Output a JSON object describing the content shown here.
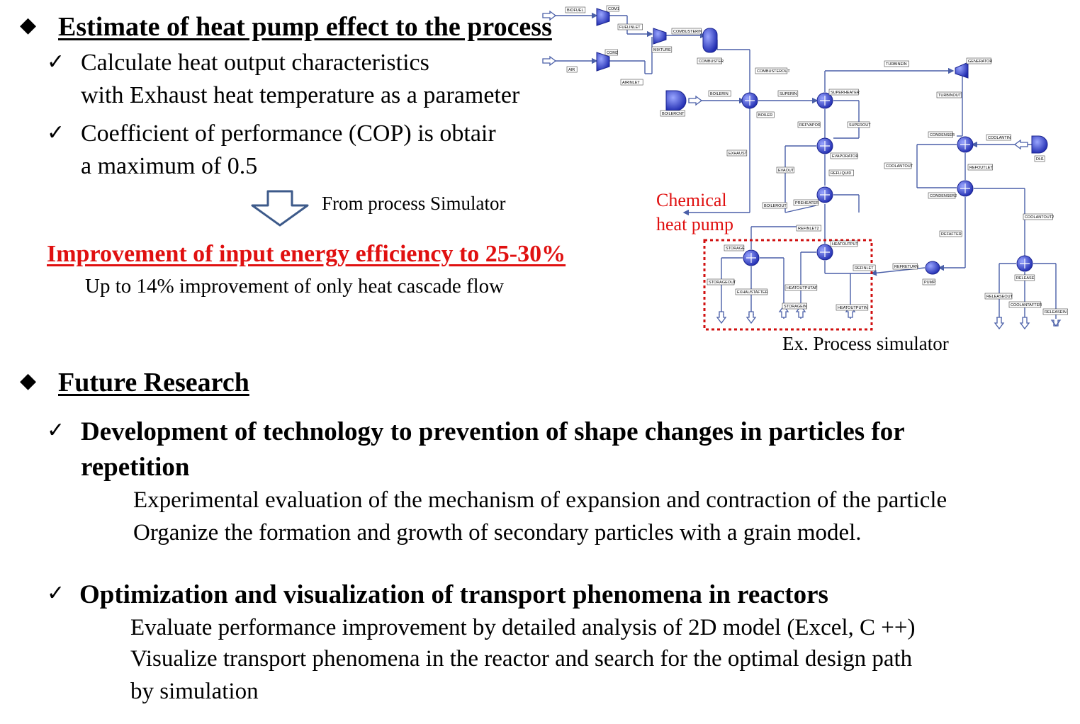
{
  "section1": {
    "heading": "Estimate of heat pump effect to the process",
    "bullets": [
      {
        "line1": "Calculate heat output characteristics",
        "line2": "with Exhaust heat temperature as a parameter"
      },
      {
        "line1": "Coefficient of performance (COP) is obtair",
        "line2": "a maximum of 0.5"
      }
    ],
    "arrow_label": "From process Simulator",
    "result": "Improvement of input energy efficiency to 25-30%",
    "result_note": "Up to 14% improvement of only heat cascade flow"
  },
  "figure": {
    "highlight_label_1": "Chemical",
    "highlight_label_2": "heat pump",
    "caption": "Ex. Process simulator",
    "colors": {
      "unit": "#2a36c8",
      "line": "#4a5fa8",
      "highlight": "#d01010"
    },
    "tags": {
      "biofuel": "BIOFUEL",
      "com1": "COM1",
      "fuelinlet": "FUELINLET",
      "com2": "COM2",
      "air": "AIR",
      "airinlet": "AIRINLET",
      "mixture": "MIXTURE",
      "combusterin": "COMBUSTERIN",
      "combuster": "COMBUSTER",
      "combusterout": "COMBUSTEROUT",
      "boilerin": "BOILERIN",
      "boiler": "BOILER",
      "boilercnt": "BOILERCNT",
      "superin": "SUPERIN",
      "superheater": "SUPERHEATER",
      "refvapor": "REFVAPOR",
      "superout": "SUPEROUT",
      "evaporator": "EVAPORATOR",
      "evaout": "EVAOUT",
      "refliquid": "REFLIQUID",
      "exhaust": "EXHAUST",
      "boilerout": "BOILEROUT",
      "preheater": "PREHEATER",
      "refinlet2": "REFINLET2",
      "turbinein": "TURBINEIN",
      "generator": "GENERATOR",
      "turbinout": "TURBINOUT",
      "condenser": "CONDENSER",
      "coolantin": "COOLANTIN",
      "dh1": "DH1",
      "coolantout": "COOLANTOUT",
      "refoutlet": "REFOUTLET",
      "condenser2": "CONDENSER2",
      "coolantout2": "COOLANTOUT2",
      "refafter": "REFAFTER",
      "storage": "STORAGE",
      "heatoutput": "HEATOUTPUT",
      "refinlet": "REFINLET",
      "storageout": "STORAGEOUT",
      "exhaustafter": "EXHAUSTAFTER",
      "heatoutputaf": "HEATOUTPUTAF",
      "storagein": "STORAGEIN",
      "heatoutputin": "HEATOUTPUTIN",
      "refreturn": "REFRETURN",
      "pump": "PUMP",
      "release": "RELEASE",
      "releaseout": "RELEASEOUT",
      "coolantafter": "COOLANTAFTER",
      "releasein": "RELEASEIN"
    }
  },
  "section2": {
    "heading": "Future Research",
    "items": [
      {
        "title_line1": "Development of technology to prevention of shape changes in particles for",
        "title_line2": "repetition",
        "details": [
          "Experimental evaluation of the mechanism of expansion and contraction of the particle",
          "Organize the formation and growth of secondary particles with a grain model."
        ]
      },
      {
        "title_line1": "Optimization and visualization of transport phenomena in reactors",
        "details": [
          "Evaluate performance improvement by detailed analysis of 2D model (Excel, C ++)",
          "Visualize transport phenomena in the reactor and search for the optimal design path",
          "by simulation"
        ]
      }
    ]
  }
}
